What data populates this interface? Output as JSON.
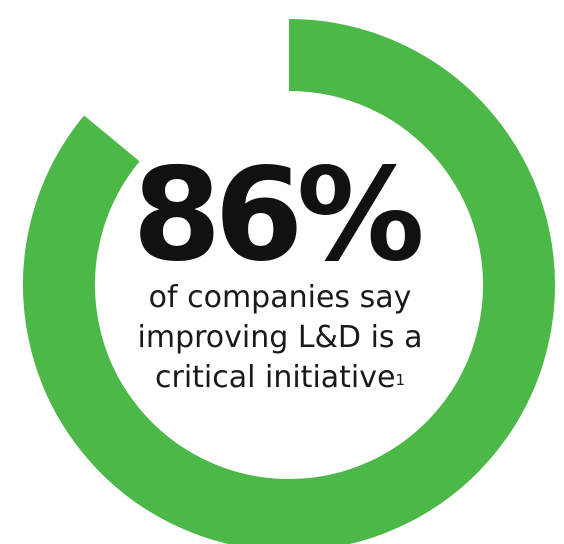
{
  "chart_data": {
    "type": "pie",
    "variant": "donut",
    "value": 86,
    "max": 100,
    "headline": "86%",
    "caption_lines": [
      "of companies say",
      "improving L&D is a",
      "critical initiative"
    ],
    "footnote_marker": "1",
    "colors": {
      "filled": "#4cb848",
      "track": "#ffffff"
    }
  }
}
